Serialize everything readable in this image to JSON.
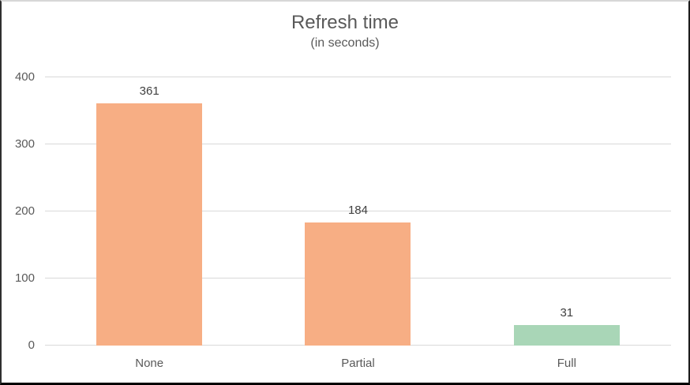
{
  "chart_data": {
    "type": "bar",
    "title": "Refresh time",
    "subtitle": "(in seconds)",
    "categories": [
      "None",
      "Partial",
      "Full"
    ],
    "values": [
      361,
      184,
      31
    ],
    "bar_colors": [
      "#F7AE84",
      "#F7AE84",
      "#A9D6B7"
    ],
    "xlabel": "",
    "ylabel": "",
    "ylim": [
      0,
      400
    ],
    "yticks": [
      0,
      100,
      200,
      300,
      400
    ],
    "grid": true,
    "legend": "none",
    "colors": {
      "gridline": "#D9D9D9",
      "axis_text": "#595959",
      "value_label": "#404040",
      "title_text": "#595959",
      "background": "#FFFFFF",
      "frame_border": "#000000"
    }
  }
}
